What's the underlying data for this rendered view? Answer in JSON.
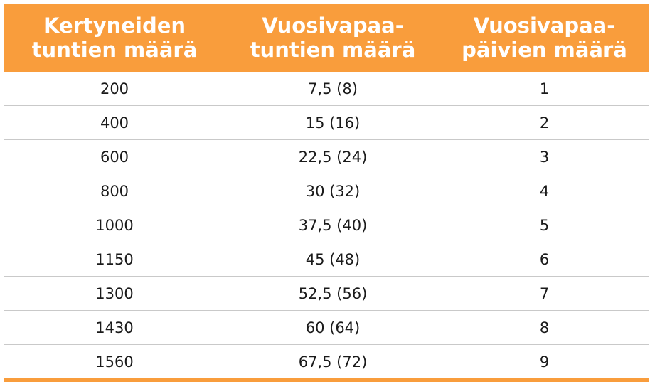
{
  "table": {
    "headers": [
      {
        "line1": "Kertyneiden",
        "line2": "tuntien määrä"
      },
      {
        "line1": "Vuosivapaa-",
        "line2": "tuntien määrä"
      },
      {
        "line1": "Vuosivapaa-",
        "line2": "päivien määrä"
      }
    ],
    "rows": [
      [
        "200",
        "7,5 (8)",
        "1"
      ],
      [
        "400",
        "15 (16)",
        "2"
      ],
      [
        "600",
        "22,5 (24)",
        "3"
      ],
      [
        "800",
        "30 (32)",
        "4"
      ],
      [
        "1000",
        "37,5 (40)",
        "5"
      ],
      [
        "1150",
        "45 (48)",
        "6"
      ],
      [
        "1300",
        "52,5 (56)",
        "7"
      ],
      [
        "1430",
        "60 (64)",
        "8"
      ],
      [
        "1560",
        "67,5 (72)",
        "9"
      ]
    ],
    "colors": {
      "header_bg": "#f99d3c",
      "header_text": "#ffffff",
      "row_divider": "#c9c9c9",
      "body_text": "#1a1a1a"
    }
  }
}
